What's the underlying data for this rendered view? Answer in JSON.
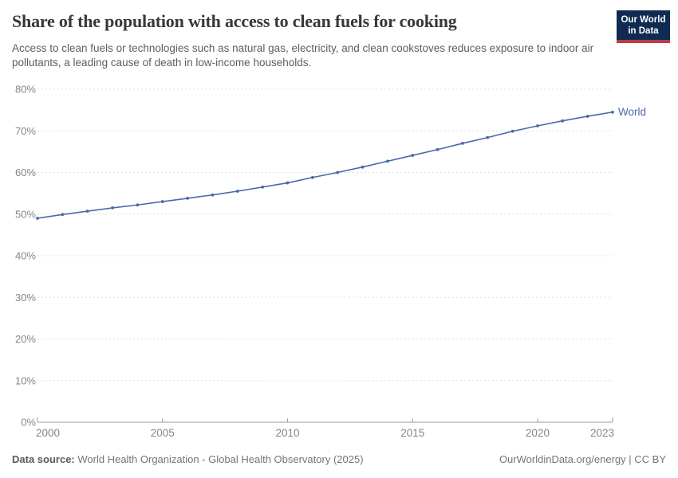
{
  "header": {
    "title": "Share of the population with access to clean fuels for cooking",
    "subtitle": "Access to clean fuels or technologies such as natural gas, electricity, and clean cookstoves reduces exposure to indoor air pollutants, a leading cause of death in low-income households.",
    "logo": {
      "line1": "Our World",
      "line2": "in Data"
    }
  },
  "chart_data": {
    "type": "line",
    "title": "Share of the population with access to clean fuels for cooking",
    "x": [
      2000,
      2001,
      2002,
      2003,
      2004,
      2005,
      2006,
      2007,
      2008,
      2009,
      2010,
      2011,
      2012,
      2013,
      2014,
      2015,
      2016,
      2017,
      2018,
      2019,
      2020,
      2021,
      2022,
      2023
    ],
    "series": [
      {
        "name": "World",
        "color": "#4a69a8",
        "values": [
          49.0,
          49.9,
          50.7,
          51.5,
          52.2,
          53.0,
          53.8,
          54.6,
          55.5,
          56.5,
          57.5,
          58.8,
          60.0,
          61.3,
          62.7,
          64.1,
          65.5,
          67.0,
          68.4,
          69.9,
          71.2,
          72.4,
          73.5,
          74.5
        ]
      }
    ],
    "xlabel": "",
    "ylabel": "",
    "ylim": [
      0,
      80
    ],
    "yticks": [
      0,
      10,
      20,
      30,
      40,
      50,
      60,
      70,
      80
    ],
    "yticklabels": [
      "0%",
      "10%",
      "20%",
      "30%",
      "40%",
      "50%",
      "60%",
      "70%",
      "80%"
    ],
    "xticks": [
      2000,
      2005,
      2010,
      2015,
      2020,
      2023
    ],
    "xticklabels": [
      "2000",
      "2005",
      "2010",
      "2015",
      "2020",
      "2023"
    ],
    "grid": "horizontal-dashed",
    "legend": "end-of-line-label",
    "end_label": "World"
  },
  "footer": {
    "source_label": "Data source:",
    "source_text": "World Health Organization - Global Health Observatory (2025)",
    "attribution": "OurWorldinData.org/energy | CC BY"
  },
  "colors": {
    "line": "#4a69a8",
    "title": "#383838",
    "subtitle": "#5e5e5e",
    "tick_label": "#858585",
    "gridline": "#e0e0e0",
    "axis_line": "#999999",
    "footer_text": "#757575",
    "logo_bg": "#102b52",
    "logo_stripe": "#bc3b40"
  }
}
